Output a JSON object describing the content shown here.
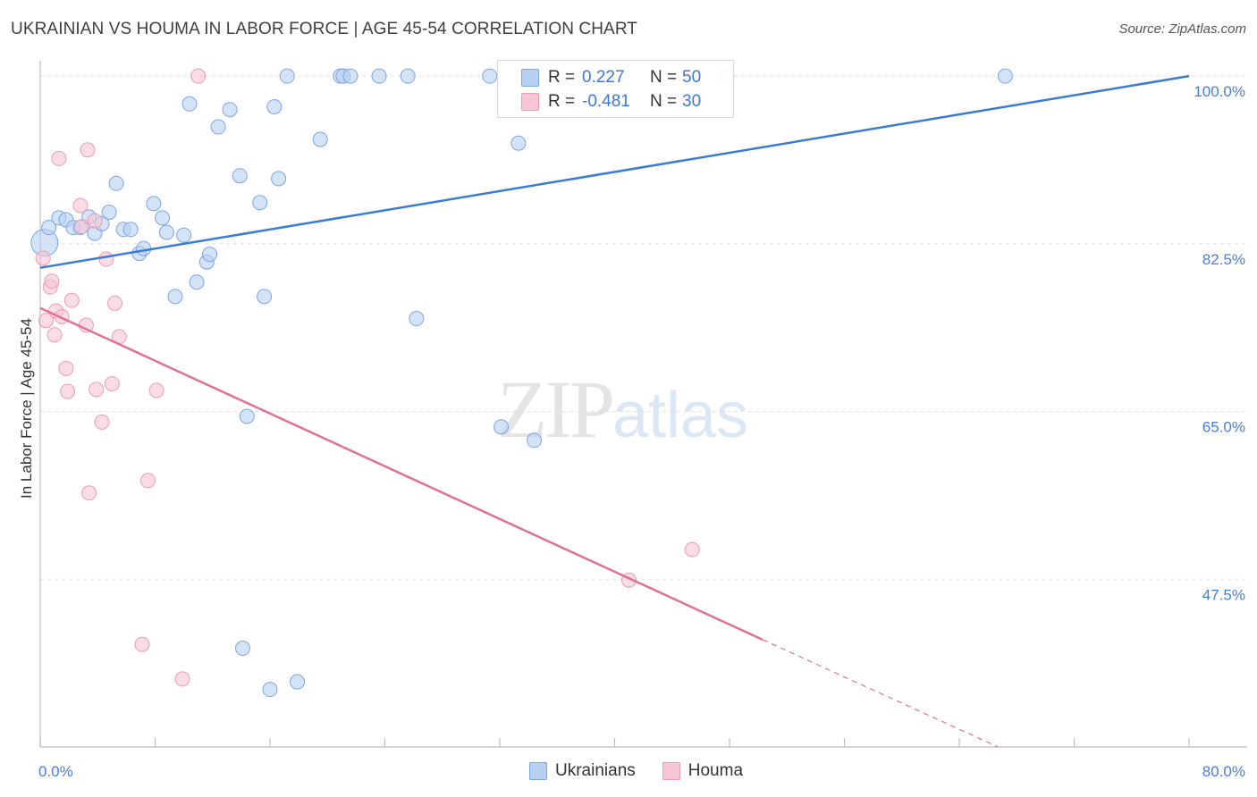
{
  "title": "UKRAINIAN VS HOUMA IN LABOR FORCE | AGE 45-54 CORRELATION CHART",
  "source": "Source: ZipAtlas.com",
  "watermark": {
    "zip": "ZIP",
    "atlas": "atlas"
  },
  "legend": {
    "r_label": "R =",
    "n_label": "N =",
    "rows": [
      {
        "r": "0.227",
        "n": "50"
      },
      {
        "r": "-0.481",
        "n": "30"
      }
    ]
  },
  "colors": {
    "blue_fill": "#b8d1f3",
    "blue_stroke": "#7aa6e3",
    "blue_line": "#3a7bd5",
    "pink_fill": "#f7c5d4",
    "pink_stroke": "#ee9ab4",
    "pink_line": "#e0709a",
    "grid": "#e0e0e0",
    "tick_text": "#4a7ed6"
  },
  "chart_data": {
    "type": "scatter",
    "title": "UKRAINIAN VS HOUMA IN LABOR FORCE | AGE 45-54 CORRELATION CHART",
    "xlabel": "",
    "ylabel": "In Labor Force | Age 45-54",
    "xlim": [
      0,
      80
    ],
    "ylim": [
      30,
      101.6
    ],
    "x_tick_labels": [
      "0.0%",
      "80.0%"
    ],
    "y_ticks": [
      47.5,
      65.0,
      82.5,
      100.0
    ],
    "y_tick_labels": [
      "47.5%",
      "65.0%",
      "82.5%",
      "100.0%"
    ],
    "grid": true,
    "legend_position": "bottom-center",
    "series": [
      {
        "name": "Ukrainians",
        "color": "#b8d1f3",
        "points": [
          [
            0.3,
            82.6
          ],
          [
            0.6,
            84.2
          ],
          [
            1.3,
            85.2
          ],
          [
            1.8,
            85.0
          ],
          [
            2.3,
            84.2
          ],
          [
            2.8,
            84.2
          ],
          [
            3.4,
            85.3
          ],
          [
            3.8,
            83.6
          ],
          [
            4.3,
            84.6
          ],
          [
            4.8,
            85.8
          ],
          [
            5.3,
            88.8
          ],
          [
            5.8,
            84.0
          ],
          [
            6.3,
            84.0
          ],
          [
            6.9,
            81.5
          ],
          [
            7.2,
            82.0
          ],
          [
            7.9,
            86.7
          ],
          [
            8.5,
            85.2
          ],
          [
            8.8,
            83.7
          ],
          [
            9.4,
            77.0
          ],
          [
            10.0,
            83.4
          ],
          [
            10.4,
            97.1
          ],
          [
            10.9,
            78.5
          ],
          [
            11.6,
            80.6
          ],
          [
            11.8,
            81.4
          ],
          [
            12.4,
            94.7
          ],
          [
            13.2,
            96.5
          ],
          [
            13.9,
            89.6
          ],
          [
            14.1,
            40.3
          ],
          [
            14.4,
            64.5
          ],
          [
            15.3,
            86.8
          ],
          [
            15.6,
            77.0
          ],
          [
            16.0,
            36.0
          ],
          [
            16.3,
            96.8
          ],
          [
            16.6,
            89.3
          ],
          [
            17.2,
            100.0
          ],
          [
            17.9,
            36.8
          ],
          [
            19.5,
            93.4
          ],
          [
            20.9,
            100.0
          ],
          [
            21.1,
            100.0
          ],
          [
            21.6,
            100.0
          ],
          [
            23.6,
            100.0
          ],
          [
            25.6,
            100.0
          ],
          [
            26.2,
            74.7
          ],
          [
            31.3,
            100.0
          ],
          [
            32.1,
            63.4
          ],
          [
            33.3,
            93.0
          ],
          [
            34.4,
            62.0
          ],
          [
            39.5,
            100.0
          ],
          [
            47.8,
            100.0
          ],
          [
            67.2,
            100.0
          ]
        ]
      },
      {
        "name": "Houma",
        "color": "#f7c5d4",
        "points": [
          [
            0.2,
            81.0
          ],
          [
            0.4,
            74.5
          ],
          [
            0.7,
            78.0
          ],
          [
            0.8,
            78.6
          ],
          [
            1.0,
            73.0
          ],
          [
            1.1,
            75.5
          ],
          [
            1.3,
            91.4
          ],
          [
            1.5,
            74.9
          ],
          [
            1.8,
            69.5
          ],
          [
            1.9,
            67.1
          ],
          [
            2.2,
            76.6
          ],
          [
            2.8,
            86.5
          ],
          [
            2.9,
            84.3
          ],
          [
            3.2,
            74.0
          ],
          [
            3.3,
            92.3
          ],
          [
            3.4,
            56.5
          ],
          [
            3.8,
            84.9
          ],
          [
            3.9,
            67.3
          ],
          [
            4.3,
            63.9
          ],
          [
            4.6,
            80.9
          ],
          [
            5.0,
            67.9
          ],
          [
            5.2,
            76.3
          ],
          [
            5.5,
            72.8
          ],
          [
            7.1,
            40.7
          ],
          [
            7.5,
            57.8
          ],
          [
            8.1,
            67.2
          ],
          [
            9.9,
            37.1
          ],
          [
            11.0,
            100.0
          ],
          [
            41.0,
            47.4
          ],
          [
            45.4,
            50.6
          ]
        ]
      }
    ],
    "trend_lines": [
      {
        "series": "Ukrainians",
        "x": [
          0,
          80
        ],
        "y": [
          80.0,
          100.0
        ]
      },
      {
        "series": "Houma",
        "x": [
          0,
          50.3
        ],
        "y": [
          75.8,
          41.2
        ],
        "dashed_x": [
          50.3,
          66.7
        ],
        "dashed_y": [
          41.2,
          30.0
        ]
      }
    ]
  },
  "bottom_legend": [
    "Ukrainians",
    "Houma"
  ]
}
